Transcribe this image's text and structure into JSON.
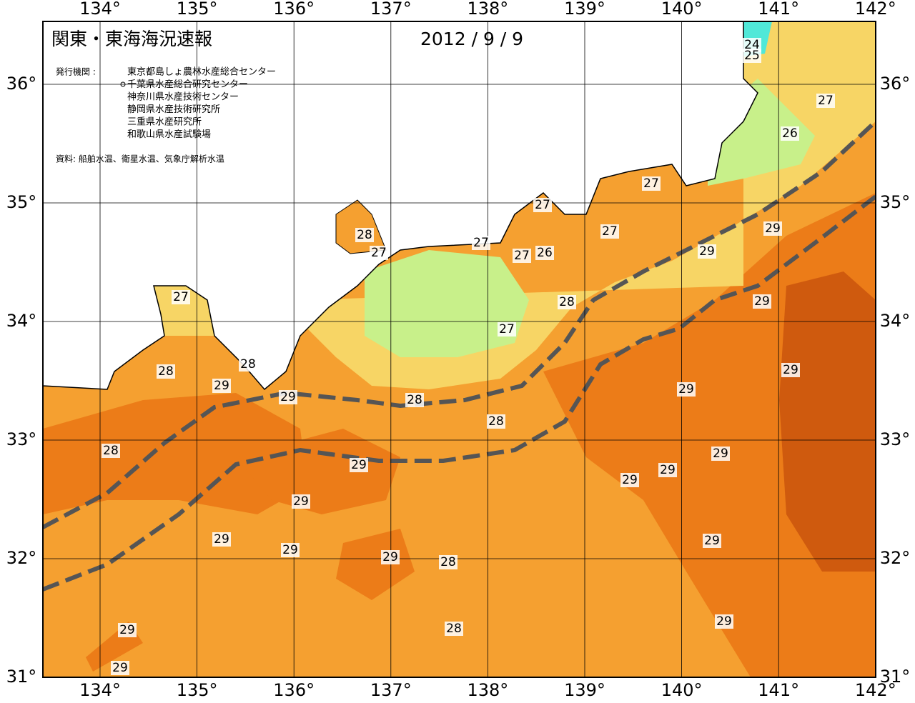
{
  "header": {
    "title": "関東・東海海況速報",
    "date": "2012 / 9 / 9"
  },
  "issuers": {
    "label": "発行機関 :",
    "names": [
      "東京都島しょ農林水産総合センター",
      "千葉県水産総合研究センター",
      "神奈川県水産技術センター",
      "静岡県水産技術研究所",
      "三重県水産研究所",
      "和歌山県水産試験場"
    ]
  },
  "source": "資料: 船舶水温、衛星水温、気象庁解析水温",
  "axes": {
    "longitude": [
      "134°",
      "135°",
      "136°",
      "137°",
      "138°",
      "139°",
      "140°",
      "141°",
      "142°"
    ],
    "latitude": [
      "36°",
      "35°",
      "34°",
      "33°",
      "32°",
      "31°"
    ]
  },
  "contour_labels": [
    "24",
    "25",
    "27",
    "26",
    "27",
    "27",
    "27",
    "29",
    "28",
    "27",
    "27",
    "27",
    "26",
    "29",
    "27",
    "28",
    "29",
    "27",
    "28",
    "28",
    "29",
    "29",
    "29",
    "28",
    "29",
    "28",
    "28",
    "29",
    "29",
    "29",
    "29",
    "29",
    "29",
    "29",
    "29",
    "29",
    "28",
    "29",
    "28",
    "29",
    "29"
  ]
}
